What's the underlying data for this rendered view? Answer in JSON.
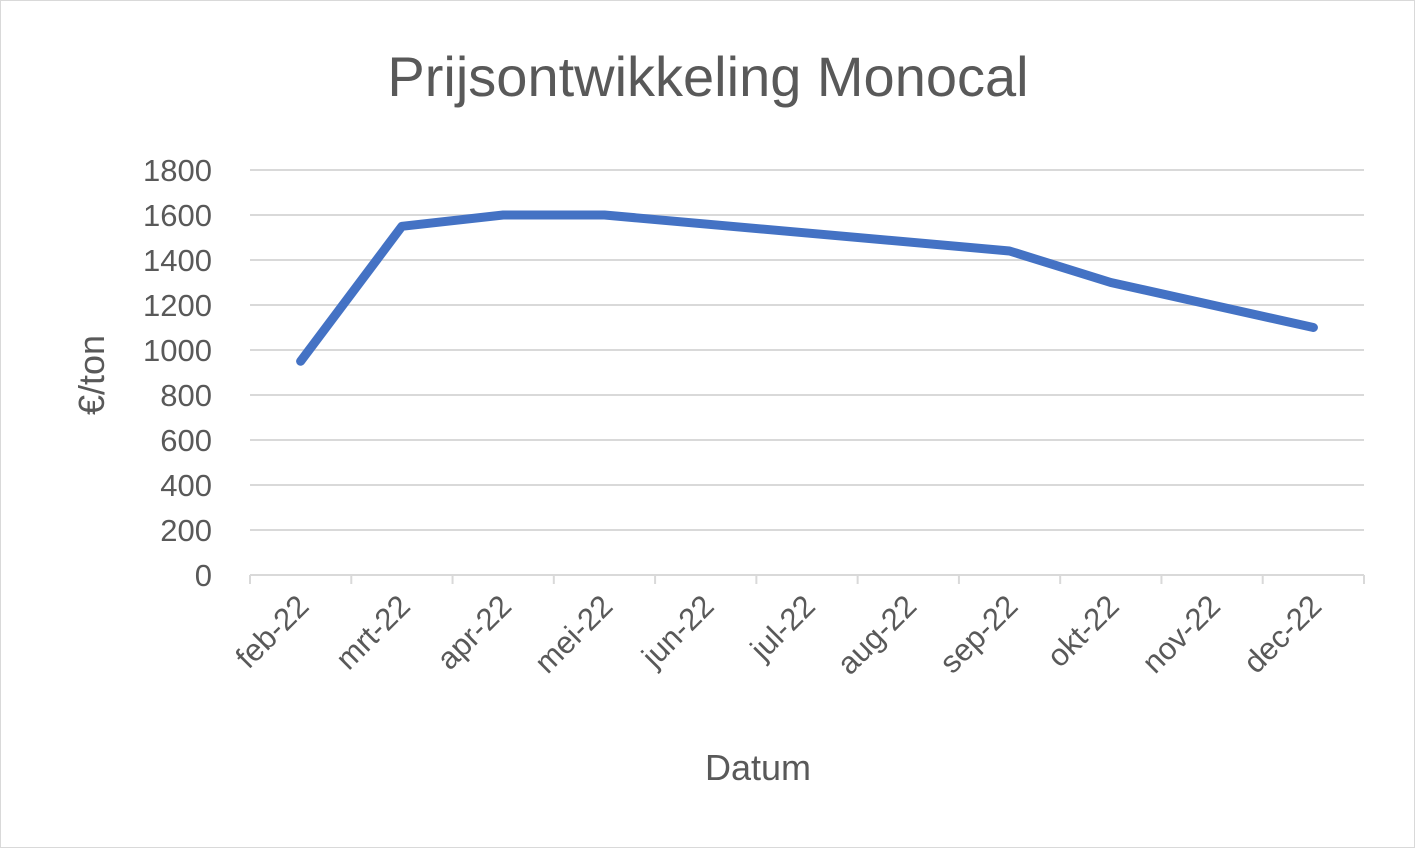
{
  "chart_data": {
    "type": "line",
    "title": "Prijsontwikkeling Monocal",
    "xlabel": "Datum",
    "ylabel": "€/ton",
    "categories": [
      "feb-22",
      "mrt-22",
      "apr-22",
      "mei-22",
      "jun-22",
      "jul-22",
      "aug-22",
      "sep-22",
      "okt-22",
      "nov-22",
      "dec-22"
    ],
    "series": [
      {
        "color": "#4472c4",
        "points": [
          {
            "x": "feb-22",
            "y": 950
          },
          {
            "x": "mrt-22",
            "y": 1550
          },
          {
            "x": "apr-22",
            "y": 1600
          },
          {
            "x": "mei-22",
            "y": 1600
          },
          {
            "x": "sep-22",
            "y": 1440
          },
          {
            "x": "okt-22",
            "y": 1300
          },
          {
            "x": "dec-22",
            "y": 1100
          }
        ]
      }
    ],
    "ylim": [
      0,
      1800
    ],
    "yticks": [
      0,
      200,
      400,
      600,
      800,
      1000,
      1200,
      1400,
      1600,
      1800
    ],
    "grid": true,
    "legend": "none"
  }
}
